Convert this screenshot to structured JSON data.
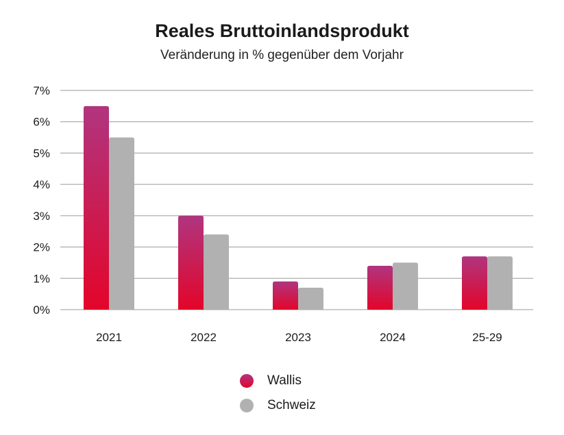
{
  "chart_data": {
    "type": "bar",
    "title": "Reales Bruttoinlandsprodukt",
    "subtitle": "Veränderung in % gegenüber dem Vorjahr",
    "categories": [
      "2021",
      "2022",
      "2023",
      "2024",
      "25-29"
    ],
    "series": [
      {
        "name": "Wallis",
        "values": [
          6.5,
          3.0,
          0.9,
          1.4,
          1.7
        ],
        "color_top": "#b0357f",
        "color_bottom": "#e3052a"
      },
      {
        "name": "Schweiz",
        "values": [
          5.5,
          2.4,
          0.7,
          1.5,
          1.7
        ],
        "color": "#b1b1b1"
      }
    ],
    "yticks": [
      "0%",
      "1%",
      "2%",
      "3%",
      "4%",
      "5%",
      "6%",
      "7%"
    ],
    "ylim": [
      0,
      7
    ],
    "grid": true,
    "legend_position": "bottom"
  }
}
